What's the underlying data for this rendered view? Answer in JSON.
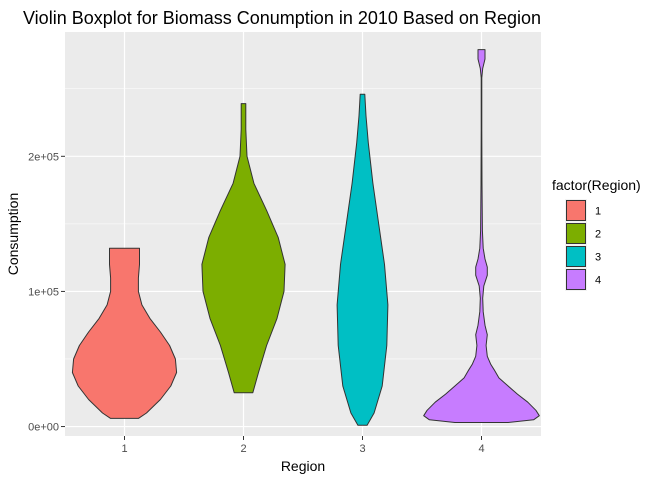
{
  "chart_data": {
    "type": "violin",
    "title": "Violin Boxplot for Biomass Conumption in 2010 Based on Region",
    "xlabel": "Region",
    "ylabel": "Consumption",
    "categories": [
      "1",
      "2",
      "3",
      "4"
    ],
    "y_ticks": [
      0,
      100000,
      200000
    ],
    "y_tick_labels": [
      "0e+00",
      "1e+05",
      "2e+05"
    ],
    "ylim": [
      -7000,
      292000
    ],
    "grid": true,
    "legend": {
      "title": "factor(Region)",
      "position": "right",
      "entries": [
        "1",
        "2",
        "3",
        "4"
      ]
    },
    "series": [
      {
        "category": "1",
        "color": "#F8766D",
        "min": 6000,
        "max": 132000,
        "profile": [
          [
            6000,
            0.24
          ],
          [
            10000,
            0.38
          ],
          [
            20000,
            0.62
          ],
          [
            30000,
            0.8
          ],
          [
            40000,
            0.9
          ],
          [
            50000,
            0.88
          ],
          [
            60000,
            0.78
          ],
          [
            70000,
            0.62
          ],
          [
            80000,
            0.44
          ],
          [
            90000,
            0.3
          ],
          [
            100000,
            0.24
          ],
          [
            110000,
            0.24
          ],
          [
            120000,
            0.26
          ],
          [
            132000,
            0.26
          ]
        ]
      },
      {
        "category": "2",
        "color": "#7CAE00",
        "min": 25000,
        "max": 239000,
        "profile": [
          [
            25000,
            0.16
          ],
          [
            40000,
            0.26
          ],
          [
            60000,
            0.4
          ],
          [
            80000,
            0.58
          ],
          [
            100000,
            0.7
          ],
          [
            120000,
            0.72
          ],
          [
            140000,
            0.6
          ],
          [
            160000,
            0.4
          ],
          [
            180000,
            0.18
          ],
          [
            200000,
            0.06
          ],
          [
            220000,
            0.04
          ],
          [
            239000,
            0.04
          ]
        ]
      },
      {
        "category": "3",
        "color": "#00BFC4",
        "min": 1000,
        "max": 246000,
        "profile": [
          [
            1000,
            0.08
          ],
          [
            10000,
            0.2
          ],
          [
            30000,
            0.34
          ],
          [
            60000,
            0.42
          ],
          [
            90000,
            0.44
          ],
          [
            120000,
            0.38
          ],
          [
            150000,
            0.28
          ],
          [
            180000,
            0.18
          ],
          [
            210000,
            0.1
          ],
          [
            230000,
            0.06
          ],
          [
            246000,
            0.04
          ]
        ]
      },
      {
        "category": "4",
        "color": "#C77CFF",
        "min": 3000,
        "max": 279000,
        "profile": [
          [
            3000,
            0.46
          ],
          [
            5000,
            0.9
          ],
          [
            8000,
            1.0
          ],
          [
            12000,
            0.94
          ],
          [
            18000,
            0.8
          ],
          [
            24000,
            0.62
          ],
          [
            30000,
            0.46
          ],
          [
            36000,
            0.3
          ],
          [
            42000,
            0.22
          ],
          [
            46000,
            0.16
          ],
          [
            52000,
            0.1
          ],
          [
            60000,
            0.08
          ],
          [
            68000,
            0.1
          ],
          [
            75000,
            0.06
          ],
          [
            85000,
            0.03
          ],
          [
            95000,
            0.02
          ],
          [
            104000,
            0.04
          ],
          [
            112000,
            0.1
          ],
          [
            118000,
            0.1
          ],
          [
            124000,
            0.06
          ],
          [
            132000,
            0.03
          ],
          [
            145000,
            0.015
          ],
          [
            180000,
            0.008
          ],
          [
            220000,
            0.006
          ],
          [
            258000,
            0.006
          ],
          [
            265000,
            0.02
          ],
          [
            272000,
            0.06
          ],
          [
            279000,
            0.06
          ]
        ]
      }
    ]
  }
}
